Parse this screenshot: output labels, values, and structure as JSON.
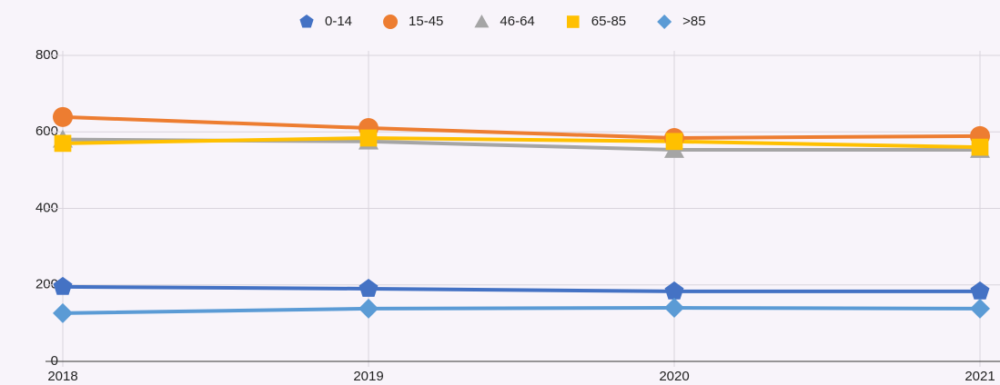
{
  "chart_data": {
    "type": "line",
    "categories": [
      "2018",
      "2019",
      "2020",
      "2021"
    ],
    "series": [
      {
        "name": "0-14",
        "color": "#4472c4",
        "marker": "pentagon",
        "values": [
          195,
          190,
          183,
          183
        ]
      },
      {
        "name": "15-45",
        "color": "#ed7d31",
        "marker": "circle",
        "values": [
          639,
          610,
          584,
          589
        ]
      },
      {
        "name": "46-64",
        "color": "#a5a5a5",
        "marker": "triangle",
        "values": [
          580,
          575,
          553,
          553
        ]
      },
      {
        "name": "65-85",
        "color": "#ffc000",
        "marker": "square",
        "values": [
          570,
          584,
          575,
          560
        ]
      },
      {
        "name": ">85",
        "color": "#5b9bd5",
        "marker": "diamond",
        "values": [
          126,
          138,
          140,
          138
        ]
      }
    ],
    "ylim": [
      0,
      800
    ],
    "yticks": [
      0,
      200,
      400,
      600,
      800
    ],
    "grid": true,
    "legend": "top"
  }
}
